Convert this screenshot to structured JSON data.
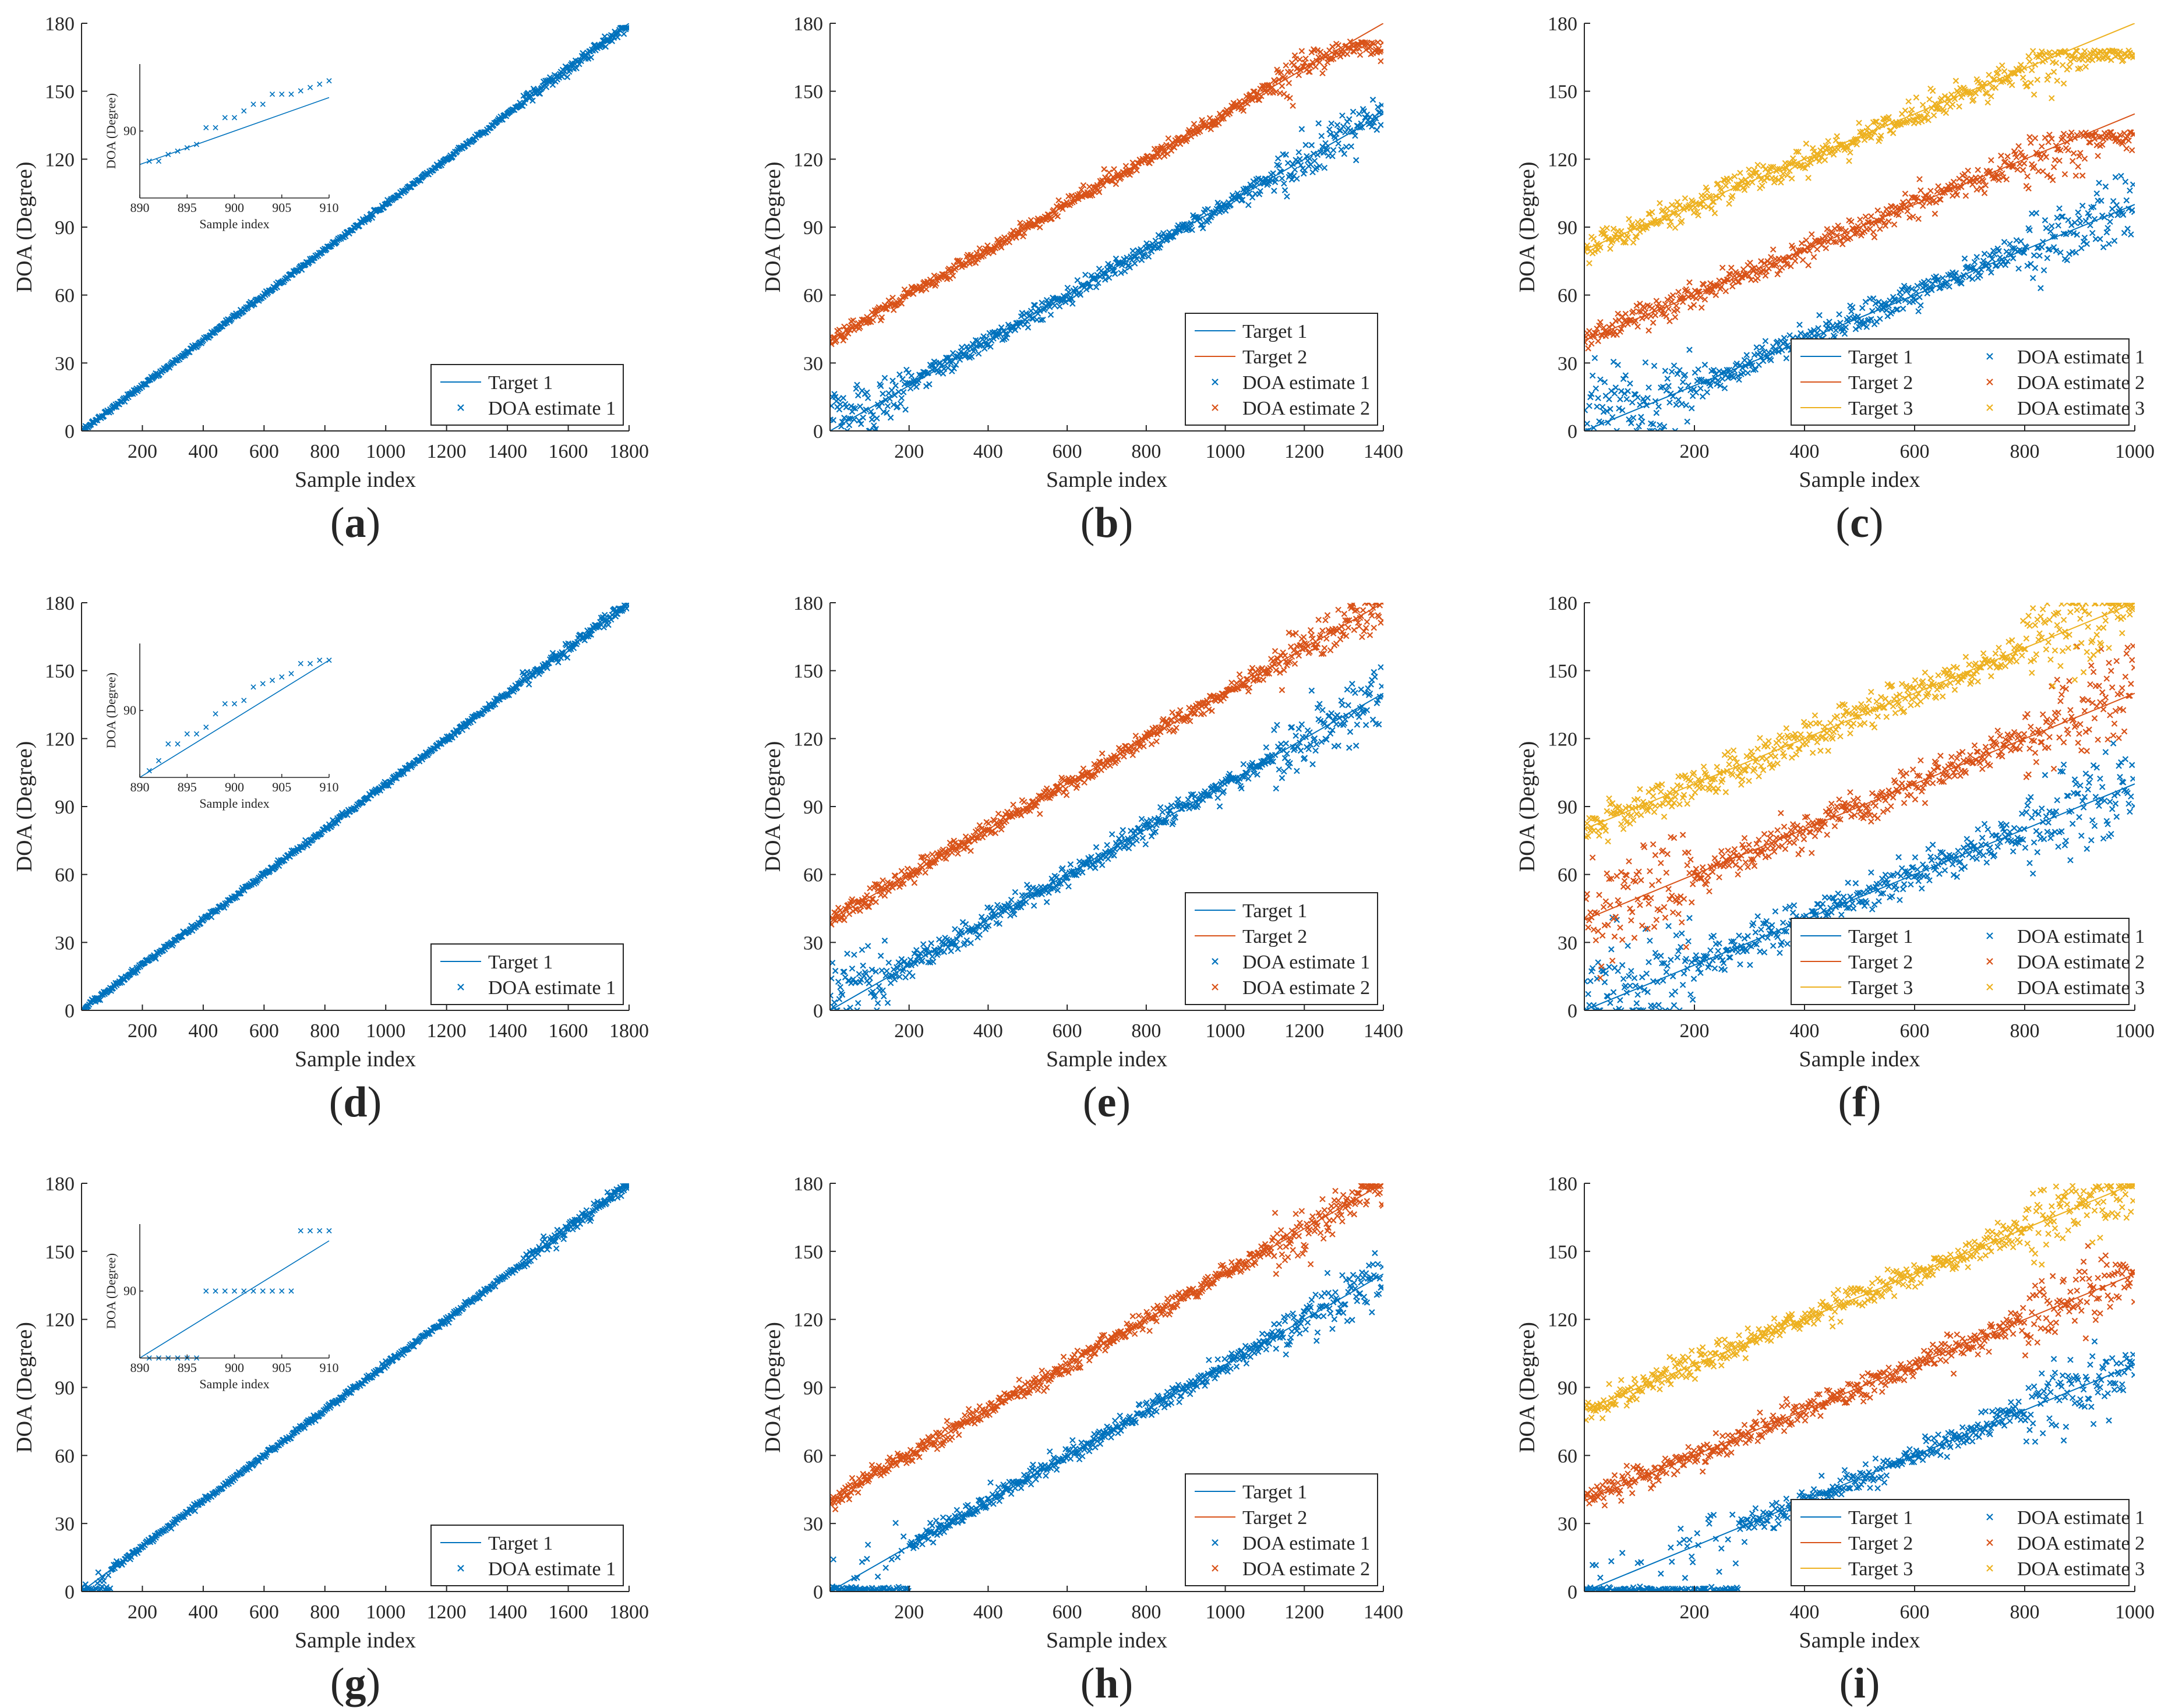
{
  "figure": {
    "colors": {
      "Target 1": "#0072BD",
      "Target 2": "#D95319",
      "Target 3": "#EDB120"
    },
    "marker": "x"
  },
  "chart_data": [
    {
      "id": "a",
      "panel_label_parts": [
        "(",
        "a",
        ")"
      ],
      "type": "line",
      "xlabel": "Sample index",
      "ylabel": "DOA (Degree)",
      "xlim": [
        0,
        1800
      ],
      "ylim": [
        0,
        180
      ],
      "xticks": [
        200,
        400,
        600,
        800,
        1000,
        1200,
        1400,
        1600,
        1800
      ],
      "yticks": [
        0,
        30,
        60,
        90,
        120,
        150,
        180
      ],
      "legend": {
        "position": "bottom-right",
        "entries": [
          "Target 1",
          "DOA estimate 1"
        ],
        "columns": 1
      },
      "targets": [
        {
          "name": "Target 1",
          "x": [
            0,
            1800
          ],
          "y": [
            0,
            180
          ]
        }
      ],
      "estimates": [
        {
          "name": "DOA estimate 1",
          "target": "Target 1",
          "noise": 0.5,
          "low_bias_until": 0,
          "low_value": null,
          "clip": "none",
          "end_plateau": 178
        }
      ],
      "inset": {
        "xlabel": "Sample index",
        "ylabel": "DOA (Degree)",
        "xlim": [
          890,
          910
        ],
        "ylim": [
          88,
          92
        ],
        "xticks": [
          890,
          895,
          900,
          905,
          910
        ],
        "ytick_labels": [
          "90"
        ],
        "line": {
          "x": [
            890,
            910
          ],
          "y": [
            89,
            91
          ]
        },
        "points": [
          {
            "x": 891,
            "y": 89.1
          },
          {
            "x": 892,
            "y": 89.1
          },
          {
            "x": 893,
            "y": 89.3
          },
          {
            "x": 894,
            "y": 89.4
          },
          {
            "x": 895,
            "y": 89.5
          },
          {
            "x": 896,
            "y": 89.6
          },
          {
            "x": 897,
            "y": 90.1
          },
          {
            "x": 898,
            "y": 90.1
          },
          {
            "x": 899,
            "y": 90.4
          },
          {
            "x": 900,
            "y": 90.4
          },
          {
            "x": 901,
            "y": 90.6
          },
          {
            "x": 902,
            "y": 90.8
          },
          {
            "x": 903,
            "y": 90.8
          },
          {
            "x": 904,
            "y": 91.1
          },
          {
            "x": 905,
            "y": 91.1
          },
          {
            "x": 906,
            "y": 91.1
          },
          {
            "x": 907,
            "y": 91.2
          },
          {
            "x": 908,
            "y": 91.3
          },
          {
            "x": 909,
            "y": 91.4
          },
          {
            "x": 910,
            "y": 91.5
          }
        ]
      }
    },
    {
      "id": "b",
      "panel_label_parts": [
        "(",
        "b",
        ")"
      ],
      "type": "line",
      "xlabel": "Sample index",
      "ylabel": "DOA (Degree)",
      "xlim": [
        0,
        1400
      ],
      "ylim": [
        0,
        180
      ],
      "xticks": [
        200,
        400,
        600,
        800,
        1000,
        1200,
        1400
      ],
      "yticks": [
        0,
        30,
        60,
        90,
        120,
        150,
        180
      ],
      "legend": {
        "position": "bottom-right",
        "entries": [
          "Target 1",
          "Target 2",
          "DOA estimate 1",
          "DOA estimate 2"
        ],
        "columns": 1
      },
      "targets": [
        {
          "name": "Target 1",
          "x": [
            0,
            1400
          ],
          "y": [
            0,
            140
          ]
        },
        {
          "name": "Target 2",
          "x": [
            0,
            1400
          ],
          "y": [
            40,
            180
          ]
        }
      ],
      "estimates": [
        {
          "name": "DOA estimate 1",
          "target": "Target 1",
          "noise": 2,
          "low_bias_until": 200,
          "low_value": 8,
          "clip": "none"
        },
        {
          "name": "DOA estimate 2",
          "target": "Target 2",
          "noise": 1.5,
          "low_bias_until": 0,
          "low_value": null,
          "clip": "top172"
        }
      ]
    },
    {
      "id": "c",
      "panel_label_parts": [
        "(",
        "c",
        ")"
      ],
      "type": "line",
      "xlabel": "Sample index",
      "ylabel": "DOA (Degree)",
      "xlim": [
        0,
        1000
      ],
      "ylim": [
        0,
        180
      ],
      "xticks": [
        200,
        400,
        600,
        800,
        1000
      ],
      "yticks": [
        0,
        30,
        60,
        90,
        120,
        150,
        180
      ],
      "legend": {
        "position": "bottom-right",
        "entries": [
          "Target 1",
          "DOA estimate 1",
          "Target 2",
          "DOA estimate 2",
          "Target 3",
          "DOA estimate 3"
        ],
        "columns": 2
      },
      "targets": [
        {
          "name": "Target 1",
          "x": [
            0,
            1000
          ],
          "y": [
            0,
            100
          ]
        },
        {
          "name": "Target 2",
          "x": [
            0,
            1000
          ],
          "y": [
            40,
            140
          ]
        },
        {
          "name": "Target 3",
          "x": [
            0,
            1000
          ],
          "y": [
            80,
            180
          ]
        }
      ],
      "estimates": [
        {
          "name": "DOA estimate 1",
          "target": "Target 1",
          "noise": 3,
          "low_bias_until": 200,
          "low_value": 12,
          "clip": "none"
        },
        {
          "name": "DOA estimate 2",
          "target": "Target 2",
          "noise": 3,
          "low_bias_until": 0,
          "low_value": null,
          "clip": "top132"
        },
        {
          "name": "DOA estimate 3",
          "target": "Target 3",
          "noise": 3,
          "low_bias_until": 0,
          "low_value": null,
          "clip": "top168"
        }
      ]
    },
    {
      "id": "d",
      "panel_label_parts": [
        "(",
        "d",
        ")"
      ],
      "type": "line",
      "xlabel": "Sample index",
      "ylabel": "DOA (Degree)",
      "xlim": [
        0,
        1800
      ],
      "ylim": [
        0,
        180
      ],
      "xticks": [
        200,
        400,
        600,
        800,
        1000,
        1200,
        1400,
        1600,
        1800
      ],
      "yticks": [
        0,
        30,
        60,
        90,
        120,
        150,
        180
      ],
      "legend": {
        "position": "bottom-right",
        "entries": [
          "Target 1",
          "DOA estimate 1"
        ],
        "columns": 1
      },
      "targets": [
        {
          "name": "Target 1",
          "x": [
            0,
            1800
          ],
          "y": [
            0,
            180
          ]
        }
      ],
      "estimates": [
        {
          "name": "DOA estimate 1",
          "target": "Target 1",
          "noise": 0.6,
          "low_bias_until": 0,
          "low_value": null,
          "clip": "none",
          "end_plateau": 180
        }
      ],
      "inset": {
        "xlabel": "Sample index",
        "ylabel": "DOA (Degree)",
        "xlim": [
          890,
          910
        ],
        "ylim": [
          88,
          92
        ],
        "xticks": [
          890,
          895,
          900,
          905,
          910
        ],
        "ytick_labels": [
          "90"
        ],
        "line": {
          "x": [
            890,
            910
          ],
          "y": [
            88,
            91.5
          ]
        },
        "points": [
          {
            "x": 891,
            "y": 88.2
          },
          {
            "x": 892,
            "y": 88.5
          },
          {
            "x": 893,
            "y": 89.0
          },
          {
            "x": 894,
            "y": 89.0
          },
          {
            "x": 895,
            "y": 89.3
          },
          {
            "x": 896,
            "y": 89.3
          },
          {
            "x": 897,
            "y": 89.5
          },
          {
            "x": 898,
            "y": 89.9
          },
          {
            "x": 899,
            "y": 90.2
          },
          {
            "x": 900,
            "y": 90.2
          },
          {
            "x": 901,
            "y": 90.3
          },
          {
            "x": 902,
            "y": 90.7
          },
          {
            "x": 903,
            "y": 90.8
          },
          {
            "x": 904,
            "y": 90.9
          },
          {
            "x": 905,
            "y": 91.0
          },
          {
            "x": 906,
            "y": 91.1
          },
          {
            "x": 907,
            "y": 91.4
          },
          {
            "x": 908,
            "y": 91.4
          },
          {
            "x": 909,
            "y": 91.5
          },
          {
            "x": 910,
            "y": 91.5
          }
        ]
      }
    },
    {
      "id": "e",
      "panel_label_parts": [
        "(",
        "e",
        ")"
      ],
      "type": "line",
      "xlabel": "Sample index",
      "ylabel": "DOA (Degree)",
      "xlim": [
        0,
        1400
      ],
      "ylim": [
        0,
        180
      ],
      "xticks": [
        200,
        400,
        600,
        800,
        1000,
        1200,
        1400
      ],
      "yticks": [
        0,
        30,
        60,
        90,
        120,
        150,
        180
      ],
      "legend": {
        "position": "bottom-right",
        "entries": [
          "Target 1",
          "Target 2",
          "DOA estimate 1",
          "DOA estimate 2"
        ],
        "columns": 1
      },
      "targets": [
        {
          "name": "Target 1",
          "x": [
            0,
            1400
          ],
          "y": [
            0,
            140
          ]
        },
        {
          "name": "Target 2",
          "x": [
            0,
            1400
          ],
          "y": [
            40,
            180
          ]
        }
      ],
      "estimates": [
        {
          "name": "DOA estimate 1",
          "target": "Target 1",
          "noise": 2.5,
          "low_bias_until": 150,
          "low_value": 12,
          "clip": "none"
        },
        {
          "name": "DOA estimate 2",
          "target": "Target 2",
          "noise": 2,
          "low_bias_until": 0,
          "low_value": null,
          "clip": "none"
        }
      ]
    },
    {
      "id": "f",
      "panel_label_parts": [
        "(",
        "f",
        ")"
      ],
      "type": "line",
      "xlabel": "Sample index",
      "ylabel": "DOA (Degree)",
      "xlim": [
        0,
        1000
      ],
      "ylim": [
        0,
        180
      ],
      "xticks": [
        200,
        400,
        600,
        800,
        1000
      ],
      "yticks": [
        0,
        30,
        60,
        90,
        120,
        150,
        180
      ],
      "legend": {
        "position": "bottom-right",
        "entries": [
          "Target 1",
          "DOA estimate 1",
          "Target 2",
          "DOA estimate 2",
          "Target 3",
          "DOA estimate 3"
        ],
        "columns": 2
      },
      "targets": [
        {
          "name": "Target 1",
          "x": [
            0,
            1000
          ],
          "y": [
            0,
            100
          ]
        },
        {
          "name": "Target 2",
          "x": [
            0,
            1000
          ],
          "y": [
            40,
            140
          ]
        },
        {
          "name": "Target 3",
          "x": [
            0,
            1000
          ],
          "y": [
            80,
            180
          ]
        }
      ],
      "estimates": [
        {
          "name": "DOA estimate 1",
          "target": "Target 1",
          "noise": 4,
          "low_bias_until": 200,
          "low_value": 12,
          "clip": "none"
        },
        {
          "name": "DOA estimate 2",
          "target": "Target 2",
          "noise": 4,
          "low_bias_until": 200,
          "low_value": 25,
          "clip": "none"
        },
        {
          "name": "DOA estimate 3",
          "target": "Target 3",
          "noise": 4,
          "low_bias_until": 0,
          "low_value": null,
          "clip": "top180"
        }
      ]
    },
    {
      "id": "g",
      "panel_label_parts": [
        "(",
        "g",
        ")"
      ],
      "type": "line",
      "xlabel": "Sample index",
      "ylabel": "DOA (Degree)",
      "xlim": [
        0,
        1800
      ],
      "ylim": [
        0,
        180
      ],
      "xticks": [
        200,
        400,
        600,
        800,
        1000,
        1200,
        1400,
        1600,
        1800
      ],
      "yticks": [
        0,
        30,
        60,
        90,
        120,
        150,
        180
      ],
      "legend": {
        "position": "bottom-right",
        "entries": [
          "Target 1",
          "DOA estimate 1"
        ],
        "columns": 1
      },
      "targets": [
        {
          "name": "Target 1",
          "x": [
            0,
            1800
          ],
          "y": [
            0,
            180
          ]
        }
      ],
      "estimates": [
        {
          "name": "DOA estimate 1",
          "target": "Target 1",
          "noise": 0.6,
          "low_bias_until": 100,
          "low_value": 0,
          "clip": "top179"
        }
      ],
      "inset": {
        "xlabel": "Sample index",
        "ylabel": "DOA (Degree)",
        "xlim": [
          890,
          910
        ],
        "ylim": [
          88,
          92
        ],
        "xticks": [
          890,
          895,
          900,
          905,
          910
        ],
        "ytick_labels": [
          "90"
        ],
        "line": {
          "x": [
            890,
            910
          ],
          "y": [
            88,
            91.5
          ]
        },
        "points": [
          {
            "x": 891,
            "y": 88
          },
          {
            "x": 892,
            "y": 88
          },
          {
            "x": 893,
            "y": 88
          },
          {
            "x": 894,
            "y": 88
          },
          {
            "x": 895,
            "y": 88
          },
          {
            "x": 896,
            "y": 88
          },
          {
            "x": 897,
            "y": 90
          },
          {
            "x": 898,
            "y": 90
          },
          {
            "x": 899,
            "y": 90
          },
          {
            "x": 900,
            "y": 90
          },
          {
            "x": 901,
            "y": 90
          },
          {
            "x": 902,
            "y": 90
          },
          {
            "x": 903,
            "y": 90
          },
          {
            "x": 904,
            "y": 90
          },
          {
            "x": 905,
            "y": 90
          },
          {
            "x": 906,
            "y": 90
          },
          {
            "x": 907,
            "y": 91.8
          },
          {
            "x": 908,
            "y": 91.8
          },
          {
            "x": 909,
            "y": 91.8
          },
          {
            "x": 910,
            "y": 91.8
          }
        ]
      }
    },
    {
      "id": "h",
      "panel_label_parts": [
        "(",
        "h",
        ")"
      ],
      "type": "line",
      "xlabel": "Sample index",
      "ylabel": "DOA (Degree)",
      "xlim": [
        0,
        1400
      ],
      "ylim": [
        0,
        180
      ],
      "xticks": [
        200,
        400,
        600,
        800,
        1000,
        1200,
        1400
      ],
      "yticks": [
        0,
        30,
        60,
        90,
        120,
        150,
        180
      ],
      "legend": {
        "position": "bottom-right",
        "entries": [
          "Target 1",
          "Target 2",
          "DOA estimate 1",
          "DOA estimate 2"
        ],
        "columns": 1
      },
      "targets": [
        {
          "name": "Target 1",
          "x": [
            0,
            1400
          ],
          "y": [
            0,
            140
          ]
        },
        {
          "name": "Target 2",
          "x": [
            0,
            1400
          ],
          "y": [
            40,
            180
          ]
        }
      ],
      "estimates": [
        {
          "name": "DOA estimate 1",
          "target": "Target 1",
          "noise": 2,
          "low_bias_until": 200,
          "low_value": 0,
          "clip": "none"
        },
        {
          "name": "DOA estimate 2",
          "target": "Target 2",
          "noise": 2,
          "low_bias_until": 0,
          "low_value": null,
          "clip": "top179"
        }
      ]
    },
    {
      "id": "i",
      "panel_label_parts": [
        "(",
        "i",
        ")"
      ],
      "type": "line",
      "xlabel": "Sample index",
      "ylabel": "DOA (Degree)",
      "xlim": [
        0,
        1000
      ],
      "ylim": [
        0,
        180
      ],
      "xticks": [
        200,
        400,
        600,
        800,
        1000
      ],
      "yticks": [
        0,
        30,
        60,
        90,
        120,
        150,
        180
      ],
      "legend": {
        "position": "bottom-right",
        "entries": [
          "Target 1",
          "DOA estimate 1",
          "Target 2",
          "DOA estimate 2",
          "Target 3",
          "DOA estimate 3"
        ],
        "columns": 2
      },
      "targets": [
        {
          "name": "Target 1",
          "x": [
            0,
            1000
          ],
          "y": [
            0,
            100
          ]
        },
        {
          "name": "Target 2",
          "x": [
            0,
            1000
          ],
          "y": [
            40,
            140
          ]
        },
        {
          "name": "Target 3",
          "x": [
            0,
            1000
          ],
          "y": [
            80,
            180
          ]
        }
      ],
      "estimates": [
        {
          "name": "DOA estimate 1",
          "target": "Target 1",
          "noise": 3,
          "low_bias_until": 280,
          "low_value": 0,
          "clip": "none"
        },
        {
          "name": "DOA estimate 2",
          "target": "Target 2",
          "noise": 3,
          "low_bias_until": 0,
          "low_value": null,
          "clip": "none"
        },
        {
          "name": "DOA estimate 3",
          "target": "Target 3",
          "noise": 3,
          "low_bias_until": 0,
          "low_value": null,
          "clip": "top179"
        }
      ]
    }
  ]
}
